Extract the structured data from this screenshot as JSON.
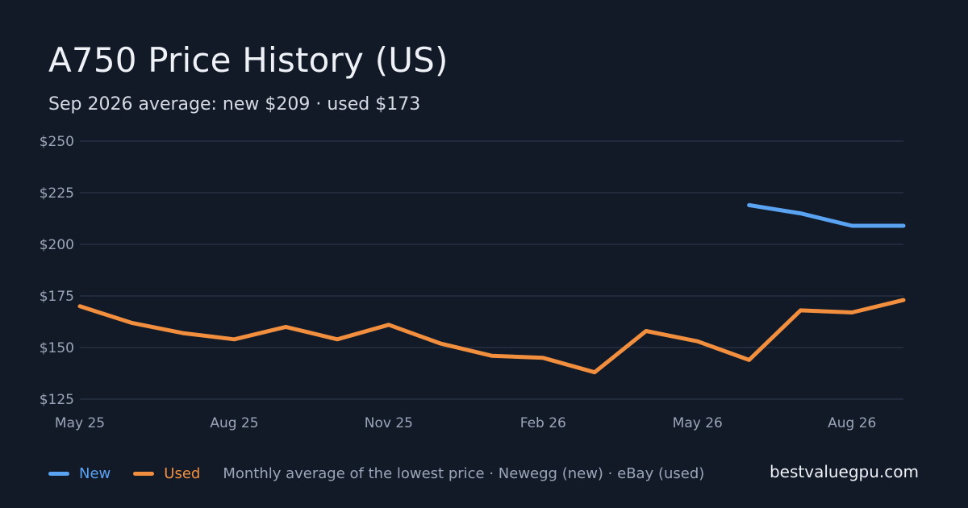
{
  "colors": {
    "background": "#121927",
    "grid": "#263041",
    "new": "#5aa2f2",
    "used": "#f28f3f",
    "axis_text": "#9aa6b8"
  },
  "title": "A750 Price History (US)",
  "subtitle": "Sep 2026 average: new $209 · used $173",
  "footer": {
    "note": "Monthly average of the lowest price · Newegg (new) · eBay (used)",
    "site": "bestvaluegpu.com"
  },
  "chart_data": {
    "type": "line",
    "title": "A750 Price History (US)",
    "subtitle": "Sep 2026 average: new $209 · used $173",
    "xlabel": "",
    "ylabel": "",
    "x": [
      "2025-05",
      "2025-06",
      "2025-07",
      "2025-08",
      "2025-09",
      "2025-10",
      "2025-11",
      "2025-12",
      "2026-01",
      "2026-02",
      "2026-03",
      "2026-04",
      "2026-05",
      "2026-06",
      "2026-07",
      "2026-08",
      "2026-09"
    ],
    "x_tick_labels": [
      "May 25",
      "Aug 25",
      "Nov 25",
      "Feb 26",
      "May 26",
      "Aug 26"
    ],
    "x_tick_values": [
      "2025-05",
      "2025-08",
      "2025-11",
      "2026-02",
      "2026-05",
      "2026-08"
    ],
    "y_ticks": [
      125,
      150,
      175,
      200,
      225,
      250
    ],
    "y_tick_labels": [
      "$125",
      "$150",
      "$175",
      "$200",
      "$225",
      "$250"
    ],
    "ylim": [
      125,
      250
    ],
    "grid": true,
    "legend_placement": "bottom-left",
    "series": [
      {
        "name": "New",
        "color": "#5aa2f2",
        "values": [
          null,
          null,
          null,
          null,
          null,
          null,
          null,
          null,
          null,
          null,
          null,
          null,
          null,
          219,
          215,
          209,
          209
        ]
      },
      {
        "name": "Used",
        "color": "#f28f3f",
        "values": [
          170,
          162,
          157,
          154,
          160,
          154,
          161,
          152,
          146,
          145,
          138,
          158,
          153,
          144,
          168,
          167,
          173
        ]
      }
    ]
  }
}
